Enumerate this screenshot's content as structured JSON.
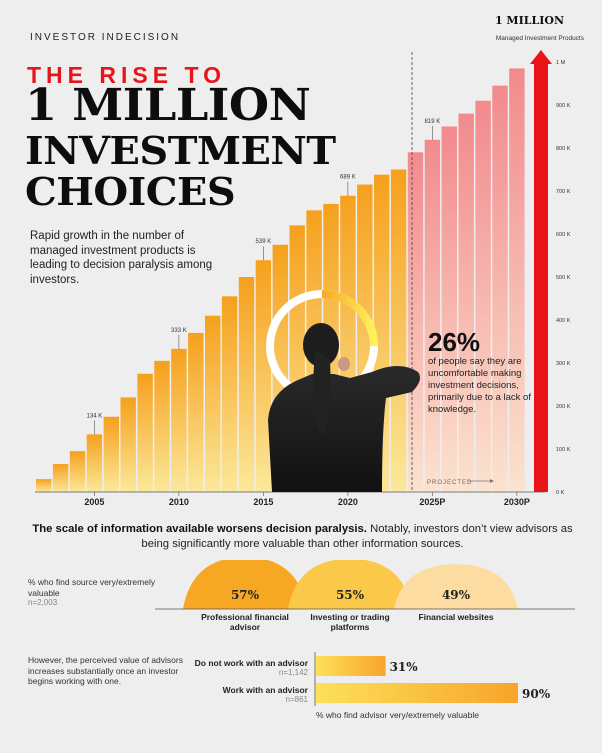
{
  "header": {
    "kicker": "INVESTOR INDECISION",
    "title_red": "THE RISE TO",
    "title_line1": "1 MILLION",
    "title_line2": "INVESTMENT",
    "title_line3": "CHOICES",
    "intro": "Rapid growth in the number of managed investment products is leading to decision paralysis among investors."
  },
  "chart_data": [
    {
      "type": "bar",
      "title": "1 MILLION",
      "subtitle": "Managed Investment Products",
      "x": [
        2002,
        2003,
        2004,
        2005,
        2006,
        2007,
        2008,
        2009,
        2010,
        2011,
        2012,
        2013,
        2014,
        2015,
        2016,
        2017,
        2018,
        2019,
        2020,
        2021,
        2022,
        2023,
        2024,
        2025,
        2026,
        2027,
        2028,
        2029,
        2030
      ],
      "values": [
        30,
        65,
        95,
        134,
        175,
        220,
        275,
        305,
        333,
        370,
        410,
        455,
        500,
        539,
        575,
        620,
        655,
        670,
        689,
        715,
        738,
        750,
        790,
        819,
        850,
        880,
        910,
        945,
        985
      ],
      "x_tick_labels": [
        "2005",
        "2010",
        "2015",
        "2020",
        "2025P",
        "2030P"
      ],
      "x_tick_years": [
        2005,
        2010,
        2015,
        2020,
        2025,
        2030
      ],
      "data_labels": [
        {
          "year": 2005,
          "text": "134 K"
        },
        {
          "year": 2010,
          "text": "333 K"
        },
        {
          "year": 2015,
          "text": "539 K"
        },
        {
          "year": 2020,
          "text": "689 K"
        },
        {
          "year": 2025,
          "text": "819 K"
        }
      ],
      "y_ticks": [
        {
          "value": 0,
          "label": "0 K"
        },
        {
          "value": 100,
          "label": "100 K"
        },
        {
          "value": 200,
          "label": "200 K"
        },
        {
          "value": 300,
          "label": "300 K"
        },
        {
          "value": 400,
          "label": "400 K"
        },
        {
          "value": 500,
          "label": "500 K"
        },
        {
          "value": 600,
          "label": "600 K"
        },
        {
          "value": 700,
          "label": "700 K"
        },
        {
          "value": 800,
          "label": "800 K"
        },
        {
          "value": 900,
          "label": "900 K"
        },
        {
          "value": 1000,
          "label": "1 M"
        }
      ],
      "ylim": [
        0,
        1000
      ],
      "projected_label": "PROJECTED",
      "projected_from": 2024,
      "colors": {
        "start": "#f9c22e",
        "end": "#f3808a",
        "arrow": "#e8141a"
      }
    },
    {
      "type": "bar",
      "categories": [
        "Professional financial advisor",
        "Investing or trading platforms",
        "Financial websites"
      ],
      "values": [
        57,
        55,
        49
      ],
      "value_labels": [
        "57%",
        "55%",
        "49%"
      ],
      "colors": [
        "#f7a823",
        "#fbc84a",
        "#fcdca0"
      ]
    },
    {
      "type": "bar",
      "categories": [
        "Do not work with an advisor",
        "Work with an advisor"
      ],
      "sample_sizes": [
        "n=1,142",
        "n=861"
      ],
      "values": [
        31,
        90
      ],
      "value_labels": [
        "31%",
        "90%"
      ],
      "xlabel": "% who find advisor very/extremely valuable",
      "colors": {
        "start": "#fde05a",
        "end": "#f7a52a"
      }
    }
  ],
  "stat": {
    "value": 26,
    "value_label": "26%",
    "text": "of people say they are uncomfortable making investment decisions, primarily due to a lack of knowledge."
  },
  "scale": {
    "headline_bold": "The scale of information available worsens decision paralysis.",
    "headline_rest": " Notably, investors don’t view advisors as being significantly more valuable than other information sources.",
    "source_label": "% who find source very/extremely valuable",
    "source_n": "n=2,003"
  },
  "advisor": {
    "note": "However, the perceived value of advisors increases substantially once an investor begins working with one."
  }
}
